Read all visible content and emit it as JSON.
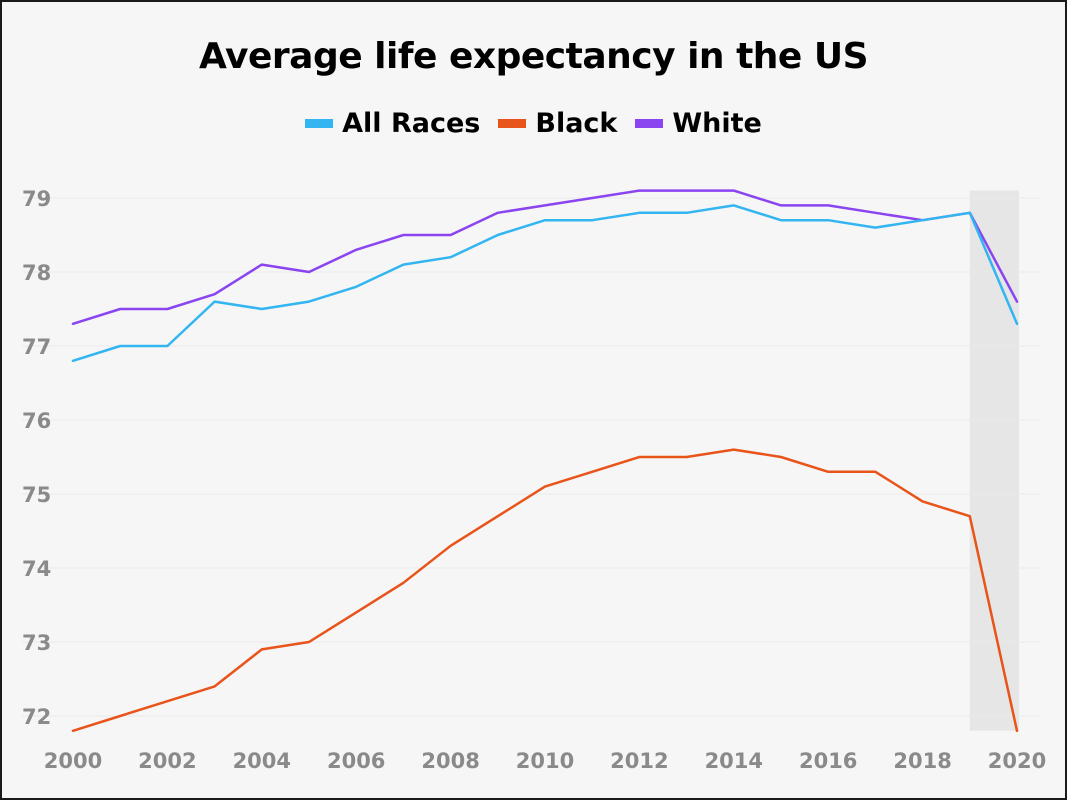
{
  "chart_data": {
    "type": "line",
    "title": "Average life expectancy in the US",
    "xlabel": "",
    "ylabel": "",
    "x": [
      2000,
      2001,
      2002,
      2003,
      2004,
      2005,
      2006,
      2007,
      2008,
      2009,
      2010,
      2011,
      2012,
      2013,
      2014,
      2015,
      2016,
      2017,
      2018,
      2019,
      2020
    ],
    "series": [
      {
        "name": "All Races",
        "color": "#32b5f0",
        "values": [
          76.8,
          77.0,
          77.0,
          77.6,
          77.5,
          77.6,
          77.8,
          78.1,
          78.2,
          78.5,
          78.7,
          78.7,
          78.8,
          78.8,
          78.9,
          78.7,
          78.7,
          78.6,
          78.7,
          78.8,
          77.3
        ]
      },
      {
        "name": "Black",
        "color": "#e8541a",
        "values": [
          71.8,
          72.0,
          72.2,
          72.4,
          72.9,
          73.0,
          73.4,
          73.8,
          74.3,
          74.7,
          75.1,
          75.3,
          75.5,
          75.5,
          75.6,
          75.5,
          75.3,
          75.3,
          74.9,
          74.7,
          71.8
        ]
      },
      {
        "name": "White",
        "color": "#8a44f0",
        "values": [
          77.3,
          77.5,
          77.5,
          77.7,
          78.1,
          78.0,
          78.3,
          78.5,
          78.5,
          78.8,
          78.9,
          79.0,
          79.1,
          79.1,
          79.1,
          78.9,
          78.9,
          78.8,
          78.7,
          78.8,
          77.6
        ]
      }
    ],
    "xlim": [
      2000,
      2020
    ],
    "ylim": [
      71.8,
      79.1
    ],
    "x_ticks": [
      "2000",
      "2002",
      "2004",
      "2006",
      "2008",
      "2010",
      "2012",
      "2014",
      "2016",
      "2018",
      "2020"
    ],
    "y_ticks": [
      "72",
      "73",
      "74",
      "75",
      "76",
      "77",
      "78",
      "79"
    ],
    "highlight_range": [
      2019,
      2020
    ],
    "highlight_color": "#e6e6e6",
    "grid": true,
    "grid_color": "#e9e9e9",
    "legend_placement": "top-center"
  }
}
